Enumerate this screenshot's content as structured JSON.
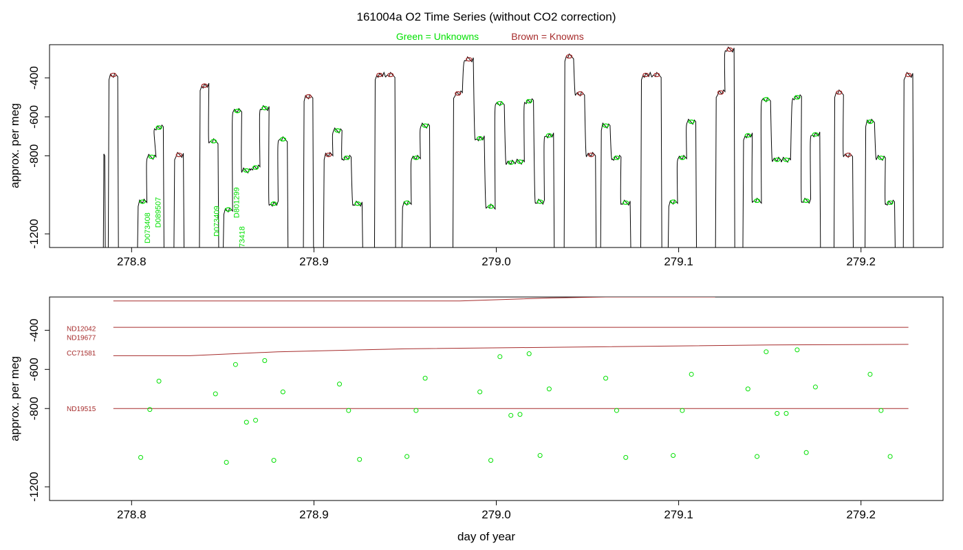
{
  "title": "161004a   O2 Time Series (without CO2 correction)",
  "legend": {
    "unknowns": "Green = Unknowns",
    "knowns": "Brown = Knowns"
  },
  "colors": {
    "unknowns": "#00e000",
    "knowns": "#a52a2a",
    "trace": "#000000"
  },
  "chart_data": [
    {
      "type": "line",
      "ylabel": "approx. per meg",
      "xlabel": "",
      "xlim": [
        278.755,
        279.245
      ],
      "ylim": [
        -1270,
        -230
      ],
      "y_reversed": true,
      "x_ticks": [
        "278.8",
        "278.9",
        "279.0",
        "279.1",
        "279.2"
      ],
      "y_ticks": [
        "-400",
        "-600",
        "-800",
        "-1200"
      ],
      "series": [
        {
          "name": "Unknowns",
          "plateaus": [
            [
              278.806,
              -1035
            ],
            [
              278.811,
              -805
            ],
            [
              278.815,
              -655
            ],
            [
              278.845,
              -725
            ],
            [
              278.853,
              -1075
            ],
            [
              278.858,
              -570
            ],
            [
              278.863,
              -875
            ],
            [
              278.868,
              -860
            ],
            [
              278.873,
              -555
            ],
            [
              278.878,
              -1045
            ],
            [
              278.883,
              -715
            ],
            [
              278.913,
              -670
            ],
            [
              278.918,
              -810
            ],
            [
              278.924,
              -1045
            ],
            [
              278.951,
              -1040
            ],
            [
              278.956,
              -810
            ],
            [
              278.961,
              -645
            ],
            [
              278.991,
              -710
            ],
            [
              278.997,
              -1060
            ],
            [
              279.002,
              -530
            ],
            [
              279.008,
              -835
            ],
            [
              279.013,
              -830
            ],
            [
              279.018,
              -520
            ],
            [
              279.024,
              -1035
            ],
            [
              279.029,
              -695
            ],
            [
              279.06,
              -645
            ],
            [
              279.066,
              -810
            ],
            [
              279.071,
              -1040
            ],
            [
              279.097,
              -1035
            ],
            [
              279.102,
              -810
            ],
            [
              279.107,
              -625
            ],
            [
              279.138,
              -695
            ],
            [
              279.143,
              -1030
            ],
            [
              279.148,
              -510
            ],
            [
              279.154,
              -820
            ],
            [
              279.159,
              -820
            ],
            [
              279.165,
              -500
            ],
            [
              279.17,
              -1030
            ],
            [
              279.175,
              -690
            ],
            [
              279.205,
              -625
            ],
            [
              279.211,
              -810
            ],
            [
              279.216,
              -1040
            ]
          ]
        },
        {
          "name": "Knowns",
          "plateaus": [
            [
              278.79,
              -385
            ],
            [
              278.826,
              -795
            ],
            [
              278.84,
              -440
            ],
            [
              278.897,
              -495
            ],
            [
              278.908,
              -795
            ],
            [
              278.936,
              -385
            ],
            [
              278.942,
              -385
            ],
            [
              278.979,
              -480
            ],
            [
              278.985,
              -305
            ],
            [
              279.04,
              -290
            ],
            [
              279.046,
              -480
            ],
            [
              279.052,
              -795
            ],
            [
              279.082,
              -385
            ],
            [
              279.088,
              -385
            ],
            [
              279.123,
              -475
            ],
            [
              279.128,
              -255
            ],
            [
              279.188,
              -475
            ],
            [
              279.193,
              -795
            ],
            [
              279.226,
              -385
            ]
          ]
        }
      ],
      "annotations": [
        "D073408",
        "D089507",
        "D073409",
        "D801299",
        "D073418"
      ]
    },
    {
      "type": "scatter",
      "ylabel": "approx. per meg",
      "xlabel": "day of year",
      "xlim": [
        278.755,
        279.245
      ],
      "ylim": [
        -1270,
        -230
      ],
      "y_reversed": true,
      "x_ticks": [
        "278.8",
        "278.9",
        "279.0",
        "279.1",
        "279.2"
      ],
      "y_ticks": [
        "-400",
        "-600",
        "-800",
        "-1200"
      ],
      "series": [
        {
          "name": "Unknowns",
          "points": [
            [
              278.805,
              -1050
            ],
            [
              278.81,
              -805
            ],
            [
              278.815,
              -660
            ],
            [
              278.846,
              -725
            ],
            [
              278.852,
              -1075
            ],
            [
              278.857,
              -575
            ],
            [
              278.863,
              -870
            ],
            [
              278.868,
              -860
            ],
            [
              278.873,
              -555
            ],
            [
              278.878,
              -1065
            ],
            [
              278.883,
              -715
            ],
            [
              278.914,
              -675
            ],
            [
              278.919,
              -810
            ],
            [
              278.925,
              -1060
            ],
            [
              278.951,
              -1045
            ],
            [
              278.956,
              -810
            ],
            [
              278.961,
              -645
            ],
            [
              278.991,
              -715
            ],
            [
              278.997,
              -1065
            ],
            [
              279.002,
              -535
            ],
            [
              279.008,
              -835
            ],
            [
              279.013,
              -830
            ],
            [
              279.018,
              -520
            ],
            [
              279.024,
              -1040
            ],
            [
              279.029,
              -700
            ],
            [
              279.06,
              -645
            ],
            [
              279.066,
              -810
            ],
            [
              279.071,
              -1050
            ],
            [
              279.097,
              -1040
            ],
            [
              279.102,
              -810
            ],
            [
              279.107,
              -625
            ],
            [
              279.138,
              -700
            ],
            [
              279.143,
              -1045
            ],
            [
              279.148,
              -510
            ],
            [
              279.154,
              -825
            ],
            [
              279.159,
              -825
            ],
            [
              279.165,
              -500
            ],
            [
              279.17,
              -1025
            ],
            [
              279.175,
              -690
            ],
            [
              279.205,
              -625
            ],
            [
              279.211,
              -810
            ],
            [
              279.216,
              -1045
            ]
          ]
        }
      ],
      "known_lines": [
        {
          "label": "",
          "points": [
            [
              278.79,
              -250
            ],
            [
              278.98,
              -250
            ],
            [
              279.03,
              -235
            ],
            [
              279.06,
              -230
            ],
            [
              279.12,
              -230
            ]
          ]
        },
        {
          "label": "ND12042",
          "points": [
            [
              278.79,
              -385
            ],
            [
              279.226,
              -385
            ]
          ]
        },
        {
          "label": "ND19677",
          "points": [
            [
              278.79,
              -530
            ],
            [
              278.832,
              -530
            ],
            [
              278.88,
              -510
            ],
            [
              278.95,
              -495
            ],
            [
              279.05,
              -485
            ],
            [
              279.15,
              -475
            ],
            [
              279.226,
              -472
            ]
          ]
        },
        {
          "label": "CC71581",
          "points": []
        },
        {
          "label": "ND19515",
          "points": [
            [
              278.79,
              -800
            ],
            [
              279.226,
              -800
            ]
          ]
        }
      ]
    }
  ]
}
